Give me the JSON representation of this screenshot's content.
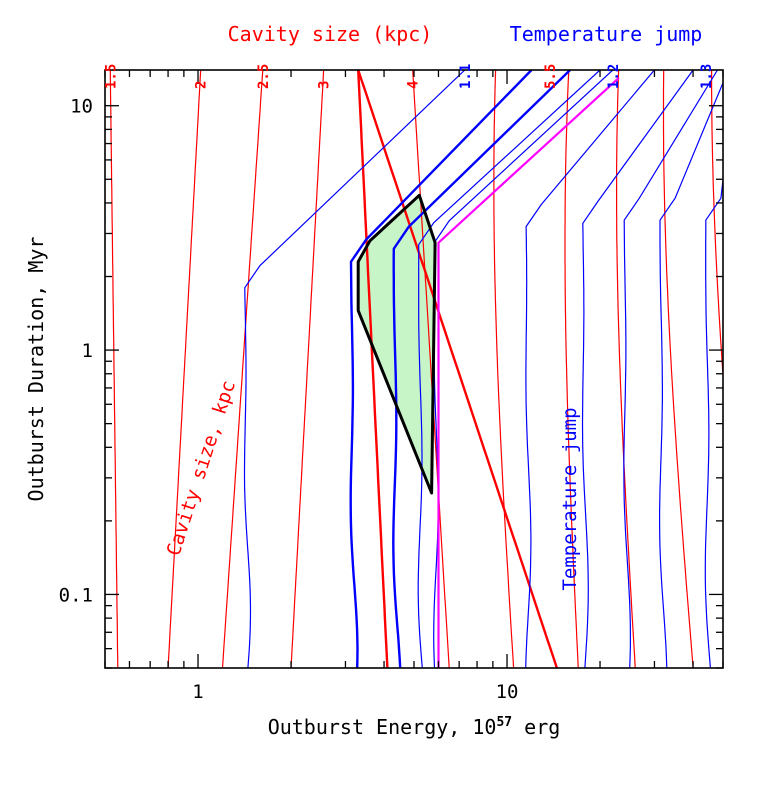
{
  "chart_data": {
    "type": "line",
    "xlabel": "Outburst Energy, 10",
    "xlabel_sup": "57",
    "xlabel_tail": " erg",
    "ylabel": "Outburst Duration, Myr",
    "xscale": "log",
    "yscale": "log",
    "xlim": [
      0.5,
      50
    ],
    "ylim": [
      0.05,
      14
    ],
    "x_tick_labels": [
      {
        "value": 1,
        "label": "1"
      },
      {
        "value": 10,
        "label": "10"
      }
    ],
    "y_tick_labels": [
      {
        "value": 0.1,
        "label": "0.1"
      },
      {
        "value": 1,
        "label": "1"
      },
      {
        "value": 10,
        "label": "10"
      }
    ],
    "top_axis_titles": {
      "cavity": "Cavity size (kpc)",
      "temperature": "Temperature jump"
    },
    "top_labels": [
      {
        "label": "1.5",
        "color": "#ff0000",
        "x": 0.52
      },
      {
        "label": "2",
        "color": "#ff0000",
        "x": 1.02
      },
      {
        "label": "2.5",
        "color": "#ff0000",
        "x": 1.62
      },
      {
        "label": "3",
        "color": "#ff0000",
        "x": 2.55
      },
      {
        "label": "4",
        "color": "#ff0000",
        "x": 4.95
      },
      {
        "label": "1.1",
        "color": "#0000ff",
        "x": 7.3
      },
      {
        "label": "5.5",
        "color": "#ff0000",
        "x": 13.8
      },
      {
        "label": "1.2",
        "color": "#0000ff",
        "x": 22.0
      },
      {
        "label": "1.3",
        "color": "#0000ff",
        "x": 44.0
      }
    ],
    "annotations": [
      {
        "text": "Cavity size, kpc",
        "color": "#ff0000"
      },
      {
        "text": "Temperature jump",
        "color": "#0000ff"
      }
    ],
    "cavity_curves": [
      {
        "bottom_x": 0.55,
        "top_x": 0.52,
        "bold": false
      },
      {
        "bottom_x": 0.8,
        "top_x": 1.02,
        "bold": false
      },
      {
        "bottom_x": 1.2,
        "top_x": 1.62,
        "bold": false
      },
      {
        "bottom_x": 2.0,
        "top_x": 2.55,
        "bold": false
      },
      {
        "bottom_x": 4.1,
        "top_x": 3.3,
        "bold": true
      },
      {
        "bottom_x": 6.5,
        "top_x": 4.95,
        "bold": false
      },
      {
        "bottom_x": 10.5,
        "top_x": 8.0,
        "bold": false
      },
      {
        "bottom_x": 14.5,
        "top_x": 3.3,
        "bold": true,
        "flatten": true
      },
      {
        "bottom_x": 17,
        "top_x": 13.8,
        "bold": false
      },
      {
        "bottom_x": 26,
        "top_x": 20,
        "bold": false
      },
      {
        "bottom_x": 40,
        "top_x": 28,
        "bold": false
      },
      {
        "bottom_x": 60,
        "top_x": 40,
        "bold": false
      }
    ],
    "temperature_curves": [
      {
        "x": 1.45,
        "knee_y": 1.8,
        "top_x": 7.3,
        "bold": false
      },
      {
        "x": 3.2,
        "knee_y": 2.3,
        "top_x": 12,
        "bold": true
      },
      {
        "x": 4.4,
        "knee_y": 2.6,
        "top_x": 16,
        "bold": true
      },
      {
        "x": 5.3,
        "knee_y": 2.7,
        "top_x": 20,
        "bold": false
      },
      {
        "x": 5.95,
        "knee_y": 2.75,
        "top_x": 22,
        "bold": false
      },
      {
        "x": 11.8,
        "knee_y": 3.2,
        "top_x": 30,
        "bold": false
      },
      {
        "x": 18.0,
        "knee_y": 3.3,
        "top_x": 40,
        "bold": false
      },
      {
        "x": 24.5,
        "knee_y": 3.4,
        "top_x": 48,
        "bold": false
      },
      {
        "x": 32.0,
        "knee_y": 3.4,
        "top_x": 52,
        "bold": false
      },
      {
        "x": 45.0,
        "knee_y": 3.4,
        "top_x": 55,
        "bold": false
      }
    ],
    "magenta_curve": [
      {
        "x": 6.0,
        "y": 0.05
      },
      {
        "x": 6.0,
        "y": 2.75
      },
      {
        "x": 23.0,
        "y": 13.0
      }
    ],
    "allowed_region": [
      {
        "x": 3.3,
        "y": 1.45
      },
      {
        "x": 3.3,
        "y": 2.3
      },
      {
        "x": 3.6,
        "y": 2.8
      },
      {
        "x": 5.2,
        "y": 4.3
      },
      {
        "x": 5.85,
        "y": 2.75
      },
      {
        "x": 5.7,
        "y": 0.26
      }
    ],
    "allowed_region_fill": "#c8f5c8"
  },
  "colors": {
    "cavity": "#ff0000",
    "temperature": "#0000ff",
    "magenta": "#ff00ff",
    "outline": "#000000"
  }
}
